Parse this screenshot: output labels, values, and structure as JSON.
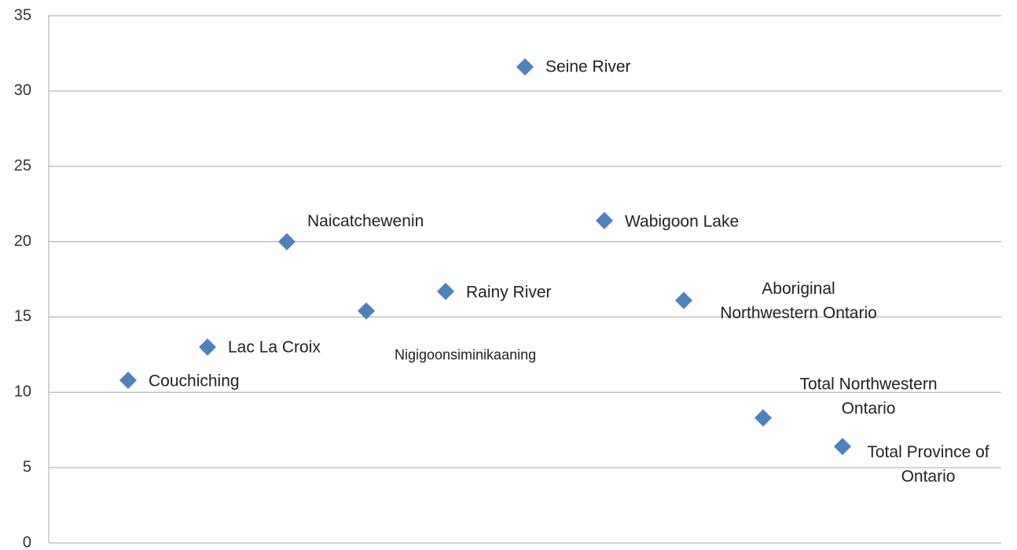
{
  "chart_data": {
    "type": "scatter",
    "x": [
      1,
      2,
      3,
      4,
      5,
      6,
      7,
      8,
      9,
      10
    ],
    "values": [
      10.8,
      13,
      20,
      15.4,
      16.7,
      31.6,
      21.4,
      16.1,
      8.3,
      6.4
    ],
    "labels": [
      [
        "Couchiching"
      ],
      [
        "Lac La Croix"
      ],
      [
        "Naicatchewenin"
      ],
      [
        "Nigigoonsiminikaaning"
      ],
      [
        "Rainy River"
      ],
      [
        "Seine River"
      ],
      [
        "Wabigoon Lake"
      ],
      [
        "Aboriginal",
        "Northwestern Ontario"
      ],
      [
        "Total Northwestern",
        "Ontario"
      ],
      [
        "Total Province of",
        "Ontario"
      ]
    ],
    "color": "#4f81bd",
    "xlim": [
      0,
      12
    ],
    "ylim": [
      0,
      35
    ],
    "yticks": [
      0,
      5,
      10,
      15,
      20,
      25,
      30,
      35
    ],
    "grid": true
  }
}
